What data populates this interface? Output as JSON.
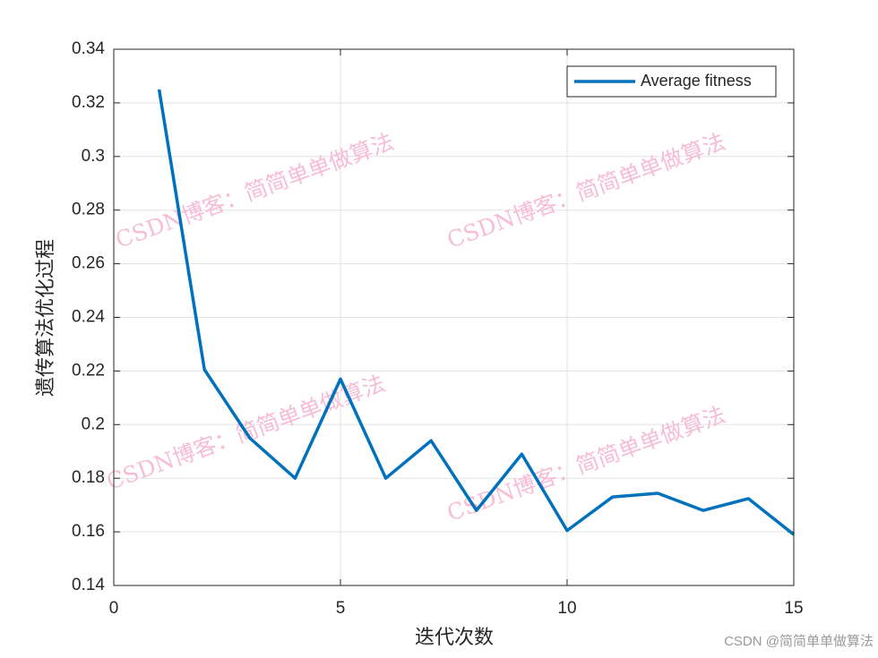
{
  "chart_data": {
    "type": "line",
    "xlabel": "迭代次数",
    "ylabel": "遗传算法优化过程",
    "x": [
      1,
      2,
      3,
      4,
      5,
      6,
      7,
      8,
      9,
      10,
      11,
      12,
      13,
      14,
      15
    ],
    "series": [
      {
        "name": "Average fitness",
        "color": "#0072bd",
        "values": [
          0.325,
          0.2205,
          0.195,
          0.18,
          0.217,
          0.18,
          0.194,
          0.168,
          0.189,
          0.1605,
          0.173,
          0.1744,
          0.168,
          0.1724,
          0.159
        ]
      }
    ],
    "xlim": [
      0,
      15
    ],
    "xticks": [
      0,
      5,
      10,
      15
    ],
    "ylim": [
      0.14,
      0.34
    ],
    "yticks": [
      0.14,
      0.16,
      0.18,
      0.2,
      0.22,
      0.24,
      0.26,
      0.28,
      0.3,
      0.32,
      0.34
    ],
    "grid": true,
    "legend": "upper right",
    "watermark": "CSDN博客：简简单单做算法",
    "credit": "CSDN @简简单单做算法"
  }
}
